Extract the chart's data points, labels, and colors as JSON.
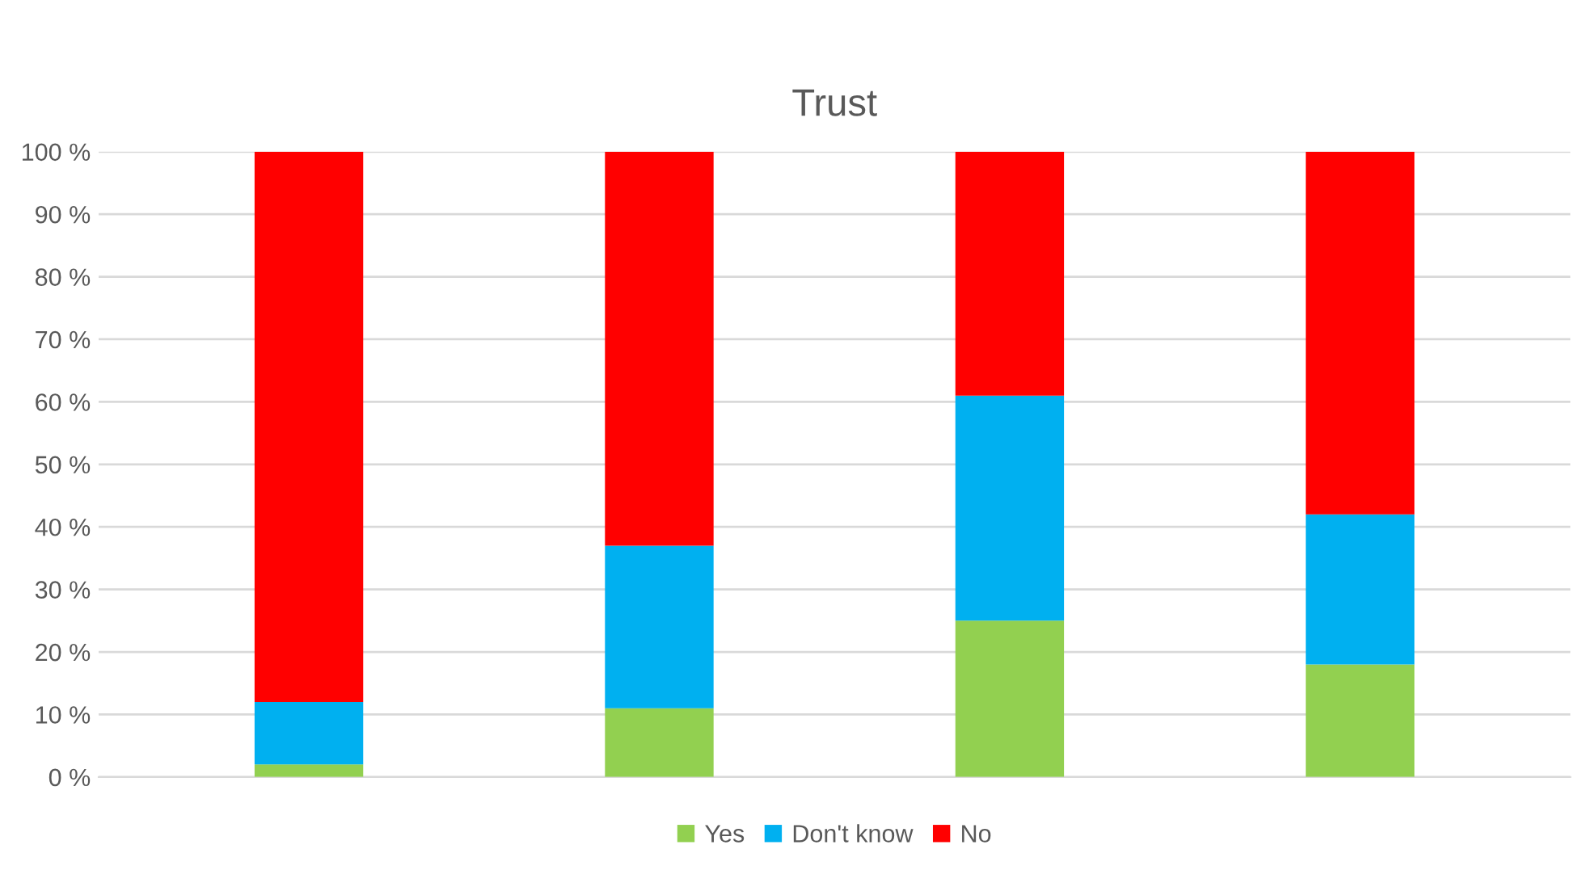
{
  "chart_data": {
    "type": "bar",
    "title": "Trust",
    "categories": [
      null,
      null,
      null,
      null
    ],
    "stacked": true,
    "series": [
      {
        "name": "Yes",
        "color": "#92d050",
        "values": [
          2,
          11,
          25,
          18
        ]
      },
      {
        "name": "Don't know",
        "color": "#00b0f0",
        "values": [
          10,
          26,
          36,
          24
        ]
      },
      {
        "name": "No",
        "color": "#ff0000",
        "values": [
          88,
          63,
          39,
          58
        ]
      }
    ],
    "ylim": [
      0,
      100
    ],
    "yticks": [
      {
        "value": 0,
        "label": "0 %"
      },
      {
        "value": 10,
        "label": "10 %"
      },
      {
        "value": 20,
        "label": "20 %"
      },
      {
        "value": 30,
        "label": "30 %"
      },
      {
        "value": 40,
        "label": "40 %"
      },
      {
        "value": 50,
        "label": "50 %"
      },
      {
        "value": 60,
        "label": "60 %"
      },
      {
        "value": 70,
        "label": "70 %"
      },
      {
        "value": 80,
        "label": "80 %"
      },
      {
        "value": 90,
        "label": "90 %"
      },
      {
        "value": 100,
        "label": "100 %"
      }
    ],
    "grid": "y",
    "legend": "bottom"
  }
}
